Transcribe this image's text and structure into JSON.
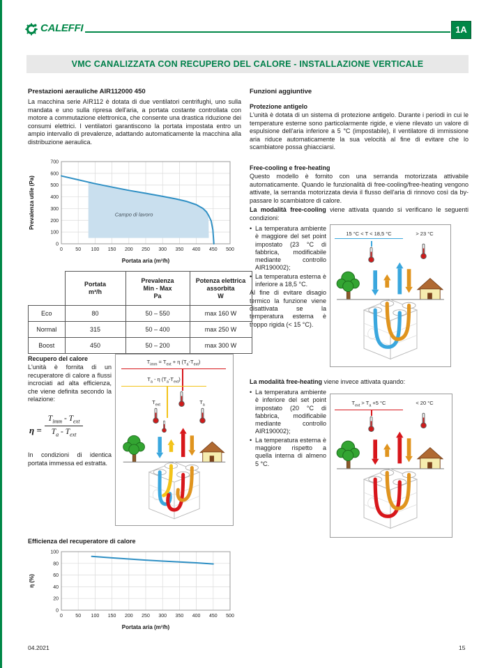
{
  "header": {
    "logo": "CALEFFI",
    "badge": "1A",
    "title": "VMC CANALIZZATA CON RECUPERO DEL CALORE - INSTALLAZIONE VERTICALE"
  },
  "footer": {
    "date": "04.2021",
    "page": "15"
  },
  "colors": {
    "brand_green": "#008747",
    "line_blue": "#2e8fc4",
    "area_blue": "#c9dfee",
    "red": "#d7161b",
    "orange": "#e0941e",
    "yellow": "#f3c318",
    "sky_blue": "#3aa7de"
  },
  "left": {
    "performance": {
      "heading": "Prestazioni aerauliche AIR112000 450",
      "body": "La macchina serie AIR112 è dotata di due ventilatori centrifughi, uno sulla mandata e uno sulla ripresa dell'aria, a portata costante controllata con motore a commutazione elettronica, che consente una drastica riduzione dei consumi elettrici. I ventilatori garantiscono la portata impostata entro un ampio intervallo di prevalenze, adattando automaticamente la macchina alla distribuzione aeraulica."
    },
    "table": {
      "headers": [
        "",
        "Portata\nm³/h",
        "Prevalenza\nMin - Max\nPa",
        "Potenza elettrica\nassorbita\nW"
      ],
      "rows": [
        [
          "Eco",
          "80",
          "50 – 550",
          "max 160 W"
        ],
        [
          "Normal",
          "315",
          "50 – 400",
          "max 250 W"
        ],
        [
          "Boost",
          "450",
          "50 – 200",
          "max 300 W"
        ]
      ]
    },
    "recovery": {
      "heading": "Recupero del calore",
      "body1": "L'unità è fornita di un recuperatore di calore a flussi incrociati ad alta efficienza, che viene definita secondo la relazione:",
      "formula": {
        "eta": "η =",
        "num": [
          "T",
          "imm",
          " - T",
          "ext"
        ],
        "den": [
          "T",
          "a",
          " - T",
          "ext"
        ]
      },
      "body2": "In condizioni di identica portata immessa ed estratta.",
      "diagram": {
        "f1": [
          "T",
          "imm",
          " = T",
          "ext",
          " + η (T",
          "a",
          "-T",
          "ext",
          ")"
        ],
        "f2": [
          "T",
          "a",
          " - η (T",
          "a",
          "-T",
          "ext",
          ")"
        ],
        "t_ext": [
          "T",
          "ext"
        ],
        "t_a": [
          "T",
          "a"
        ]
      }
    },
    "efficiency_heading": "Efficienza del recuperatore di calore"
  },
  "right": {
    "functions_heading": "Funzioni aggiuntive",
    "antifreeze": {
      "heading": "Protezione antigelo",
      "body": "L'unità è dotata di un sistema di protezione antigelo. Durante i periodi in cui le temperature esterne sono particolarmente rigide, e viene rilevato un valore di espulsione dell'aria inferiore a 5 °C (impostabile), il ventilatore di immissione aria riduce automaticamente la sua velocità al fine di evitare che lo scambiatore possa ghiacciarsi."
    },
    "freecooling": {
      "heading": "Free-cooling e free-heating",
      "body": "Questo modello è fornito con una serranda motorizzata attivabile automaticamente. Quando le funzionalità di free-cooling/free-heating vengono attivate, la serranda motorizzata devia il flusso dell'aria di rinnovo così da by-passare lo scambiatore di calore.",
      "cooling_lead": "La modalità free-cooling",
      "cooling_rest": " viene attivata quando si verificano le seguenti condizioni:",
      "cooling_bullets": [
        "La temperatura ambiente è maggiore del set point impostato (23 °C di fabbrica, modificabile mediante controllo AIR190002);",
        "La temperatura esterna è inferiore a 18,5 °C."
      ],
      "cooling_note": "Al fine di evitare disagio termico la funzione viene disattivata se la temperatura esterna è troppo rigida (< 15 °C).",
      "cooling_labels": {
        "left": "15 °C < T < 18,5 °C",
        "right": "> 23 °C"
      },
      "heating_lead": "La modalità free-heating",
      "heating_rest": " viene invece attivata quando:",
      "heating_bullets": [
        "La temperatura ambiente è inferiore del set point impostato (20 °C di fabbrica, modificabile mediante controllo AIR190002);",
        "La temperatura esterna è maggiore rispetto a quella interna di almeno 5 °C."
      ],
      "heating_labels": {
        "left": [
          "T",
          "ext",
          " > T",
          "a",
          " +5 °C"
        ],
        "right": "< 20 °C"
      }
    }
  },
  "chart_data": [
    {
      "type": "line",
      "title": "Prestazioni aerauliche AIR112000 450",
      "xlabel": "Portata aria (m³/h)",
      "ylabel": "Prevalenza utile (Pa)",
      "xlim": [
        0,
        500
      ],
      "ylim": [
        0,
        700
      ],
      "xtick_step": 50,
      "ytick_step": 100,
      "grid": true,
      "legend": false,
      "series": [
        {
          "name": "curva ventilatore",
          "color": "#2e8fc4",
          "points": [
            [
              0,
              578
            ],
            [
              50,
              545
            ],
            [
              100,
              512
            ],
            [
              150,
              483
            ],
            [
              200,
              455
            ],
            [
              250,
              430
            ],
            [
              300,
              404
            ],
            [
              340,
              382
            ],
            [
              370,
              362
            ],
            [
              400,
              333
            ],
            [
              420,
              300
            ],
            [
              430,
              272
            ],
            [
              437,
              238
            ],
            [
              444,
              195
            ],
            [
              449,
              120
            ],
            [
              452,
              0
            ]
          ]
        }
      ],
      "area": {
        "label": "Campo di lavoro",
        "color": "#c9dfee",
        "label_pos": [
          215,
          235
        ],
        "points": [
          [
            80,
            50
          ],
          [
            80,
            518
          ],
          [
            100,
            512
          ],
          [
            150,
            483
          ],
          [
            200,
            455
          ],
          [
            250,
            430
          ],
          [
            300,
            404
          ],
          [
            340,
            382
          ],
          [
            370,
            362
          ],
          [
            400,
            333
          ],
          [
            420,
            300
          ],
          [
            430,
            272
          ],
          [
            436,
            240
          ],
          [
            437,
            50
          ]
        ]
      }
    },
    {
      "type": "line",
      "title": "Efficienza del recuperatore di calore",
      "xlabel": "Portata aria (m³/h)",
      "ylabel": "η (%)",
      "xlim": [
        0,
        500
      ],
      "ylim": [
        0,
        100
      ],
      "xtick_step": 50,
      "ytick_step": 20,
      "grid": true,
      "legend": false,
      "series": [
        {
          "name": "efficienza",
          "color": "#2e8fc4",
          "points": [
            [
              90,
              92
            ],
            [
              150,
              89.5
            ],
            [
              200,
              87.5
            ],
            [
              250,
              85.5
            ],
            [
              300,
              84
            ],
            [
              350,
              82.5
            ],
            [
              400,
              81
            ],
            [
              450,
              79
            ]
          ]
        }
      ]
    }
  ]
}
